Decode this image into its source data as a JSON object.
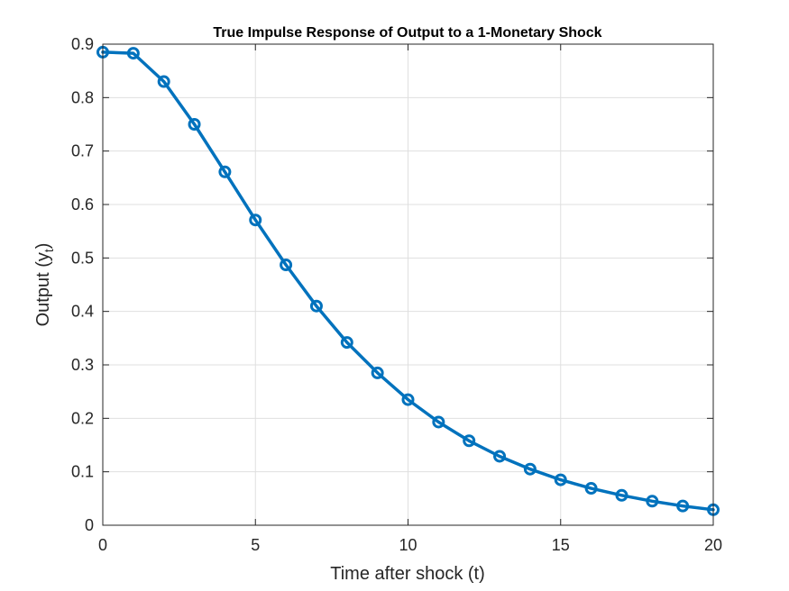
{
  "chart_data": {
    "type": "line",
    "title": "True Impulse Response of Output to a 1-Monetary Shock",
    "xlabel": "Time after shock (t)",
    "ylabel_main": "Output (y",
    "ylabel_sub": "t",
    "ylabel_close": ")",
    "xlim": [
      0,
      20
    ],
    "ylim": [
      0,
      0.9
    ],
    "xticks": [
      0,
      5,
      10,
      15,
      20
    ],
    "yticks": [
      0,
      0.1,
      0.2,
      0.3,
      0.4,
      0.5,
      0.6,
      0.7,
      0.8,
      0.9
    ],
    "xtick_labels": [
      "0",
      "5",
      "10",
      "15",
      "20"
    ],
    "ytick_labels": [
      "0",
      "0.1",
      "0.2",
      "0.3",
      "0.4",
      "0.5",
      "0.6",
      "0.7",
      "0.8",
      "0.9"
    ],
    "grid": true,
    "legend": "none",
    "series": [
      {
        "color": "#0072bd",
        "marker": "circle",
        "x": [
          0,
          1,
          2,
          3,
          4,
          5,
          6,
          7,
          8,
          9,
          10,
          11,
          12,
          13,
          14,
          15,
          16,
          17,
          18,
          19,
          20
        ],
        "y": [
          0.885,
          0.883,
          0.83,
          0.75,
          0.661,
          0.571,
          0.487,
          0.41,
          0.342,
          0.285,
          0.235,
          0.193,
          0.158,
          0.129,
          0.105,
          0.085,
          0.069,
          0.056,
          0.045,
          0.036,
          0.029
        ]
      }
    ]
  }
}
